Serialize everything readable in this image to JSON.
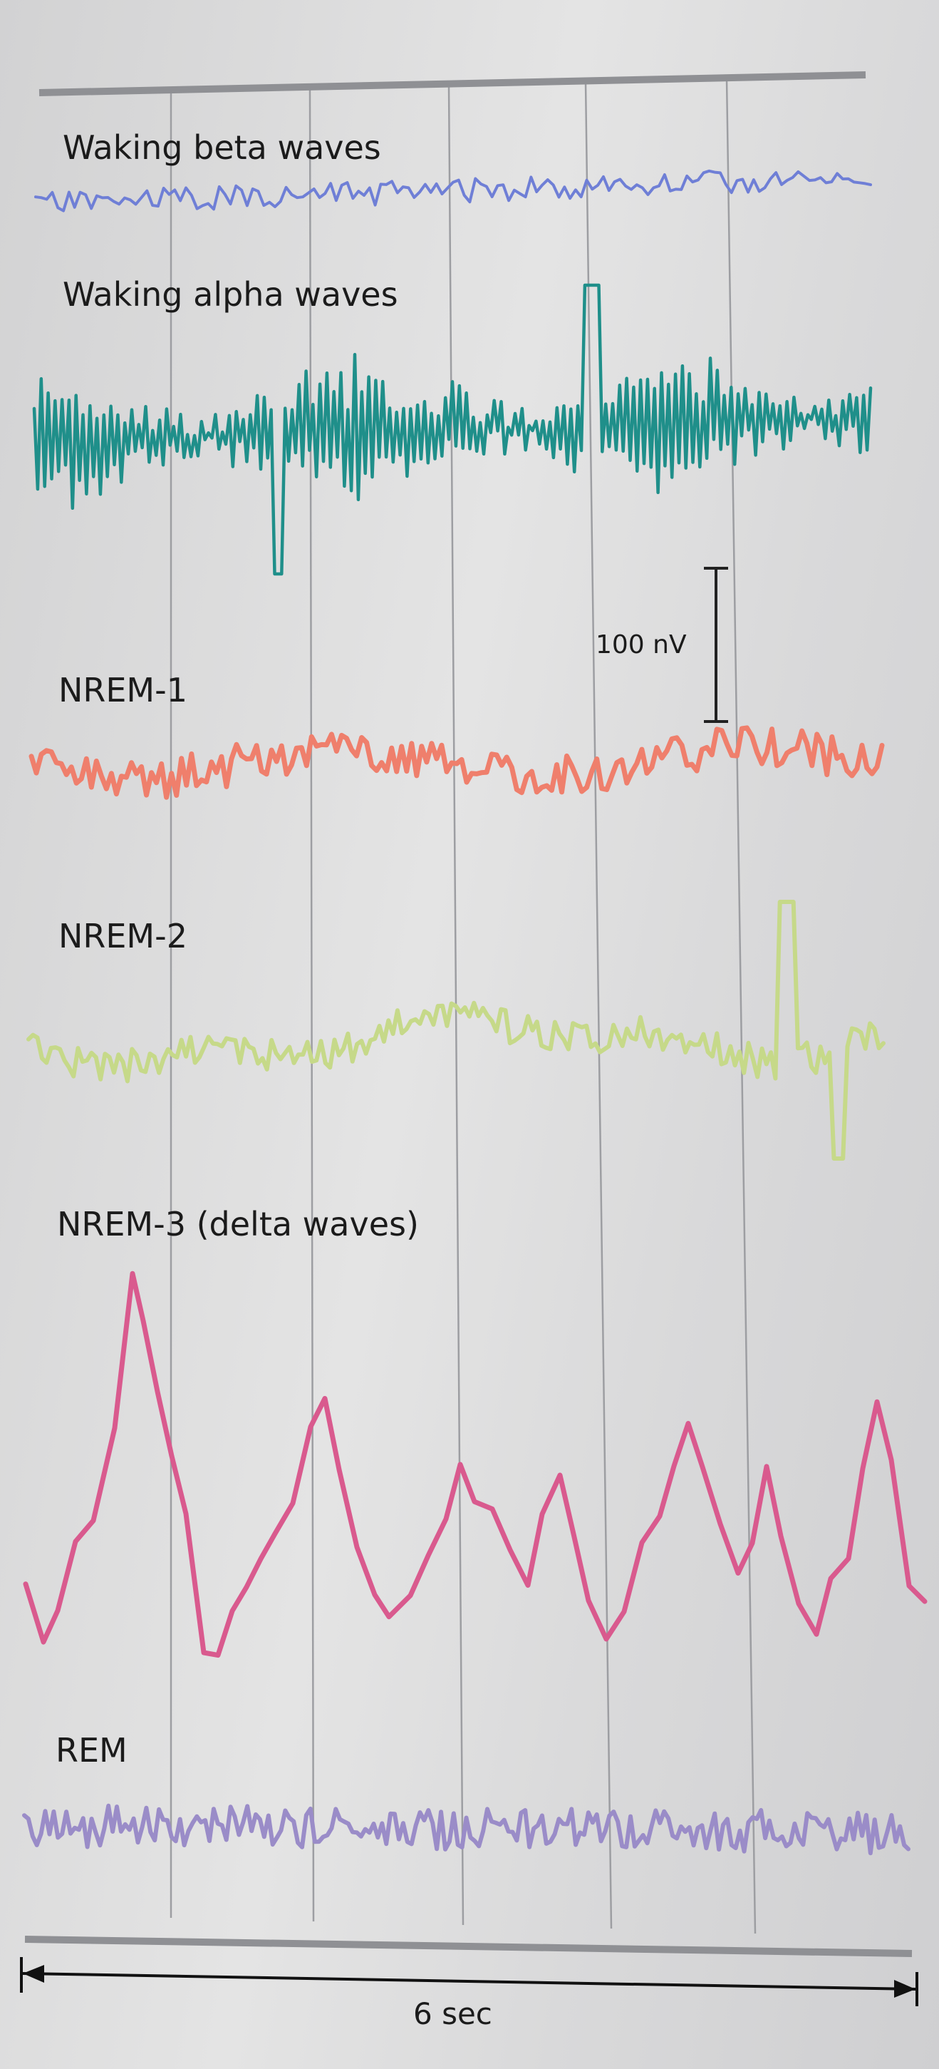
{
  "traces": [
    {
      "label": "Waking beta waves",
      "color": "#6f7fd6"
    },
    {
      "label": "Waking alpha waves",
      "color": "#1f8f8a"
    },
    {
      "label": "NREM-1",
      "color": "#ef7f6c"
    },
    {
      "label": "NREM-2",
      "color": "#c6d989"
    },
    {
      "label": "NREM-3 (delta waves)",
      "color": "#d95a8e"
    },
    {
      "label": "REM",
      "color": "#9a8cc8"
    }
  ],
  "scale_bar": {
    "label": "100 nV"
  },
  "duration": {
    "label": "6 sec"
  }
}
